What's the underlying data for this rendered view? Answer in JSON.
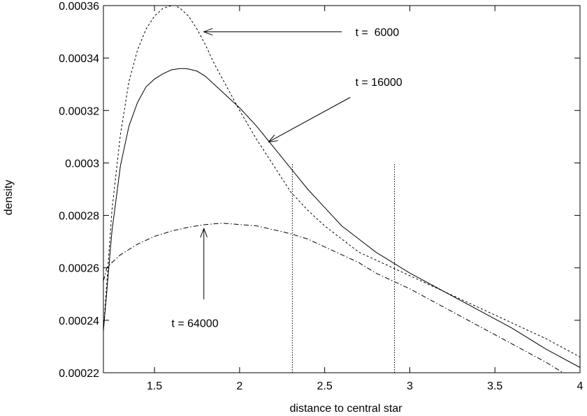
{
  "chart_data": {
    "type": "line",
    "title": "",
    "xlabel": "distance to central star",
    "ylabel": "density",
    "xlim": [
      1.2,
      4.0
    ],
    "ylim": [
      0.00022,
      0.00036
    ],
    "x_ticks": [
      1.5,
      2,
      2.5,
      3,
      3.5,
      4
    ],
    "x_tick_labels": [
      "1.5",
      "2",
      "2.5",
      "3",
      "3.5",
      "4"
    ],
    "y_ticks": [
      0.00022,
      0.00024,
      0.00026,
      0.00028,
      0.0003,
      0.00032,
      0.00034,
      0.00036
    ],
    "y_tick_labels": [
      "0.00022",
      "0.00024",
      "0.00026",
      "0.00028",
      "0.0003",
      "0.00032",
      "0.00034",
      "0.00036"
    ],
    "grid": false,
    "legend": "none",
    "series": [
      {
        "style": "dashed",
        "x": [
          1.2,
          1.25,
          1.3,
          1.35,
          1.4,
          1.45,
          1.5,
          1.55,
          1.6,
          1.62,
          1.65,
          1.7,
          1.75,
          1.8,
          1.85,
          1.9,
          1.95,
          2.0,
          2.1,
          2.2,
          2.3,
          2.4,
          2.5,
          2.6,
          2.7,
          2.8,
          2.9,
          3.0,
          3.2,
          3.4,
          3.6,
          3.8,
          4.0
        ],
        "y": [
          0.000236,
          0.000282,
          0.000311,
          0.000331,
          0.000343,
          0.000351,
          0.000356,
          0.000359,
          0.00036,
          0.00036,
          0.000359,
          0.000356,
          0.000351,
          0.000345,
          0.000338,
          0.000332,
          0.000326,
          0.00032,
          0.000309,
          0.000299,
          0.000289,
          0.000282,
          0.000276,
          0.000271,
          0.000266,
          0.000263,
          0.00026,
          0.000257,
          0.000251,
          0.000245,
          0.000239,
          0.000233,
          0.000226
        ]
      },
      {
        "style": "solid",
        "x": [
          1.2,
          1.25,
          1.3,
          1.35,
          1.4,
          1.45,
          1.5,
          1.55,
          1.6,
          1.65,
          1.68,
          1.7,
          1.75,
          1.8,
          1.85,
          1.9,
          1.95,
          2.0,
          2.1,
          2.2,
          2.3,
          2.4,
          2.5,
          2.6,
          2.7,
          2.8,
          2.9,
          3.0,
          3.2,
          3.4,
          3.6,
          3.8,
          4.0
        ],
        "y": [
          0.000236,
          0.000274,
          0.000299,
          0.000314,
          0.000323,
          0.000329,
          0.000332,
          0.000334,
          0.0003355,
          0.000336,
          0.000336,
          0.0003358,
          0.000335,
          0.000333,
          0.00033,
          0.000327,
          0.000324,
          0.000321,
          0.000314,
          0.000306,
          0.000298,
          0.00029,
          0.000283,
          0.000276,
          0.000271,
          0.000266,
          0.000262,
          0.000258,
          0.000251,
          0.000244,
          0.000237,
          0.000229,
          0.000222
        ]
      },
      {
        "style": "dash-dot",
        "x": [
          1.2,
          1.22,
          1.25,
          1.3,
          1.4,
          1.5,
          1.6,
          1.7,
          1.8,
          1.9,
          2.0,
          2.1,
          2.2,
          2.3,
          2.4,
          2.5,
          2.6,
          2.7,
          2.8,
          2.9,
          3.0,
          3.2,
          3.4,
          3.6,
          3.8,
          3.9
        ],
        "y": [
          0.000255,
          0.00026,
          0.000262,
          0.000265,
          0.000269,
          0.000272,
          0.000274,
          0.0002755,
          0.0002765,
          0.000277,
          0.0002765,
          0.000276,
          0.0002745,
          0.000273,
          0.000271,
          0.000268,
          0.000265,
          0.000262,
          0.000258,
          0.000255,
          0.000252,
          0.000245,
          0.000238,
          0.000231,
          0.000224,
          0.00022
        ]
      }
    ],
    "vlines": [
      {
        "x": 2.31,
        "y_top": 0.0003
      },
      {
        "x": 2.91,
        "y_top": 0.0003
      }
    ],
    "annotations": [
      {
        "text": "t =  6000",
        "text_x": 2.68,
        "text_y": 0.00035,
        "arrow_from": [
          2.6,
          0.00035
        ],
        "arrow_to": [
          1.79,
          0.00035
        ]
      },
      {
        "text": "t = 16000",
        "text_x": 2.68,
        "text_y": 0.000331,
        "arrow_from": [
          2.65,
          0.000325
        ],
        "arrow_to": [
          2.17,
          0.000308
        ]
      },
      {
        "text": "t = 64000",
        "text_x": 1.6,
        "text_y": 0.000239,
        "arrow_from": [
          1.79,
          0.000248
        ],
        "arrow_to": [
          1.79,
          0.000275
        ]
      }
    ]
  }
}
